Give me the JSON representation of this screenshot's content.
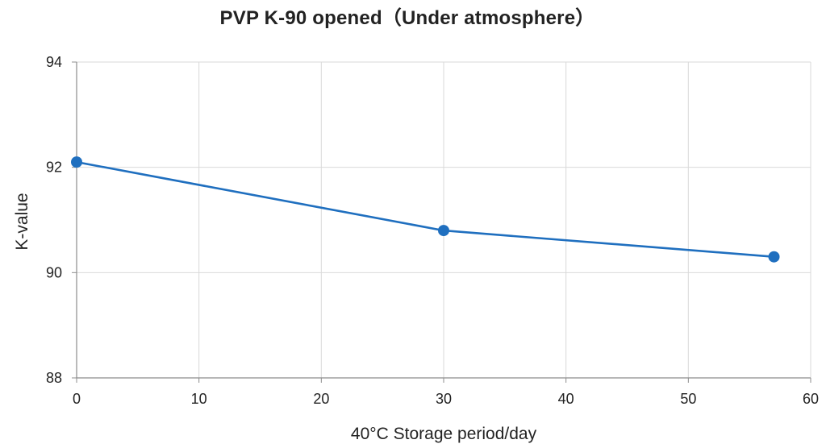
{
  "chart_data": {
    "type": "line",
    "title": "PVP K-90 opened（Under atmosphere）",
    "xlabel": "40°C Storage period/day",
    "ylabel": "K-value",
    "x_ticks": [
      "0",
      "10",
      "20",
      "30",
      "40",
      "50",
      "60"
    ],
    "y_ticks": [
      "88",
      "90",
      "92",
      "94"
    ],
    "xlim": [
      0,
      60
    ],
    "ylim": [
      88,
      94
    ],
    "grid": true,
    "legend": "none",
    "series": [
      {
        "x": [
          0,
          30,
          57
        ],
        "y": [
          92.1,
          90.8,
          90.3
        ],
        "color": "#1f6fbf"
      }
    ]
  },
  "colors": {
    "series_line": "#1f6fbf",
    "grid": "#d9d9d9",
    "axis": "#8c8c8c"
  }
}
